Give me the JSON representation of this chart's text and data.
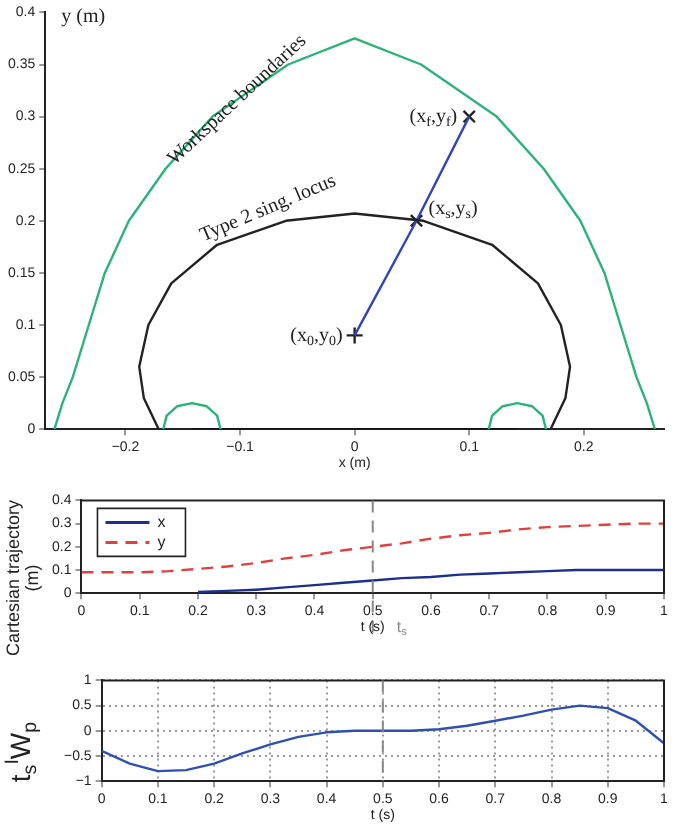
{
  "chart_data": [
    {
      "type": "line",
      "xlabel": "x (m)",
      "ylabel": "y (m)",
      "xlim": [
        -0.27,
        0.27
      ],
      "ylim": [
        0,
        0.4
      ],
      "xticks": [
        -0.2,
        -0.1,
        0,
        0.1,
        0.2
      ],
      "yticks": [
        0,
        0.05,
        0.1,
        0.15,
        0.2,
        0.25,
        0.3,
        0.35,
        0.4
      ],
      "marker": "none",
      "series": [
        {
          "color": "#2db37a",
          "x": [
            -0.262,
            -0.255,
            -0.246,
            -0.232,
            -0.218,
            -0.197,
            -0.165,
            -0.124,
            -0.058,
            0,
            0.058,
            0.124,
            0.165,
            0.197,
            0.218,
            0.232,
            0.246,
            0.255,
            0.262
          ],
          "values": [
            0,
            0.025,
            0.05,
            0.1,
            0.15,
            0.2,
            0.25,
            0.3,
            0.35,
            0.375,
            0.35,
            0.3,
            0.25,
            0.2,
            0.15,
            0.1,
            0.05,
            0.025,
            0
          ]
        },
        {
          "color": "#2db37a",
          "x": [
            -0.167,
            -0.164,
            -0.155,
            -0.142,
            -0.129,
            -0.12,
            -0.117
          ],
          "values": [
            0,
            0.013,
            0.022,
            0.025,
            0.022,
            0.013,
            0
          ]
        },
        {
          "color": "#2db37a",
          "x": [
            0.117,
            0.12,
            0.129,
            0.142,
            0.155,
            0.164,
            0.167
          ],
          "values": [
            0,
            0.013,
            0.022,
            0.025,
            0.022,
            0.013,
            0
          ]
        },
        {
          "color": "#222222",
          "x": [
            -0.171,
            -0.184,
            -0.188,
            -0.18,
            -0.16,
            -0.12,
            -0.06,
            0,
            0.06,
            0.12,
            0.16,
            0.18,
            0.188,
            0.184,
            0.171
          ],
          "values": [
            0,
            0.03,
            0.06,
            0.1,
            0.14,
            0.177,
            0.2,
            0.207,
            0.2,
            0.177,
            0.14,
            0.1,
            0.06,
            0.03,
            0
          ]
        },
        {
          "color": "#111111",
          "x": [
            -0.142,
            0.142
          ],
          "values": [
            0,
            0
          ]
        },
        {
          "color": "#3344bb",
          "x": [
            0,
            0.054,
            0.1
          ],
          "values": [
            0.09,
            0.2,
            0.3
          ]
        },
        {
          "type": "scatter",
          "marker": "plus",
          "color": "#222222",
          "x": [
            0
          ],
          "values": [
            0.09
          ]
        },
        {
          "type": "scatter",
          "marker": "cross",
          "color": "#222222",
          "x": [
            0.054
          ],
          "values": [
            0.2
          ]
        },
        {
          "type": "scatter",
          "marker": "cross",
          "color": "#222222",
          "x": [
            0.1
          ],
          "values": [
            0.3
          ]
        }
      ],
      "annotations": [
        "Workspace boundaries",
        "Type 2 sing. locus",
        {
          "text": "(x$_{0}$,y$_{0}$)",
          "x": 0,
          "y": 0.09
        },
        {
          "text": "(x$_{s}$,y$_{s}$)",
          "x": 0.054,
          "y": 0.2
        },
        {
          "text": "(x$_{f}$,y$_{f}$)",
          "x": 0.1,
          "y": 0.3
        }
      ]
    },
    {
      "type": "line",
      "xlabel": "t (s)",
      "ylabel": "Cartesian trajectory (m)",
      "xlim": [
        0,
        1
      ],
      "ylim": [
        0,
        0.4
      ],
      "xticks": [
        0,
        0.1,
        0.2,
        0.3,
        0.4,
        0.5,
        0.6,
        0.7,
        0.8,
        0.9,
        1
      ],
      "yticks": [
        0,
        0.1,
        0.2,
        0.3,
        0.4
      ],
      "legend": "top left",
      "marker": "none",
      "x": [
        0,
        0.05,
        0.1,
        0.15,
        0.2,
        0.25,
        0.3,
        0.35,
        0.4,
        0.45,
        0.5,
        0.55,
        0.6,
        0.65,
        0.7,
        0.75,
        0.8,
        0.85,
        0.9,
        0.95,
        1
      ],
      "series": [
        {
          "name": "x",
          "color": "#1f2f8f",
          "line_style": "solid",
          "values": [
            null,
            null,
            null,
            null,
            0.005,
            0.01,
            0.015,
            0.025,
            0.035,
            0.045,
            0.055,
            0.065,
            0.07,
            0.08,
            0.085,
            0.09,
            0.095,
            0.1,
            0.1,
            0.1,
            0.1
          ]
        },
        {
          "name": "y",
          "color": "#e04040",
          "line_style": "dashed",
          "values": [
            0.09,
            0.09,
            0.09,
            0.095,
            0.105,
            0.115,
            0.13,
            0.15,
            0.165,
            0.185,
            0.2,
            0.215,
            0.235,
            0.25,
            0.26,
            0.275,
            0.285,
            0.29,
            0.295,
            0.3,
            0.3
          ]
        }
      ],
      "ref_lines": [
        {
          "axis": "x",
          "value": 0.5,
          "label": "t$_{s}$",
          "color": "#888888",
          "line_style": "dashed"
        }
      ]
    },
    {
      "type": "line",
      "xlabel": "t (s)",
      "ylabel": "t$_{s}$$^{I}$W$_{p}$",
      "xlim": [
        0,
        1
      ],
      "ylim": [
        -1,
        1
      ],
      "xticks": [
        0,
        0.1,
        0.2,
        0.3,
        0.4,
        0.5,
        0.6,
        0.7,
        0.8,
        0.9,
        1
      ],
      "yticks": [
        -1,
        -0.5,
        0,
        0.5,
        1
      ],
      "grid": true,
      "marker": "none",
      "x": [
        0,
        0.05,
        0.1,
        0.15,
        0.2,
        0.25,
        0.3,
        0.35,
        0.4,
        0.45,
        0.5,
        0.55,
        0.6,
        0.65,
        0.7,
        0.75,
        0.8,
        0.85,
        0.9,
        0.95,
        1
      ],
      "series": [
        {
          "color": "#3050b0",
          "values": [
            -0.4,
            -0.65,
            -0.8,
            -0.78,
            -0.65,
            -0.45,
            -0.27,
            -0.12,
            -0.03,
            0,
            0,
            0,
            0.03,
            0.1,
            0.2,
            0.3,
            0.42,
            0.5,
            0.45,
            0.2,
            -0.25
          ]
        }
      ],
      "ref_lines": [
        {
          "axis": "x",
          "value": 0.5,
          "color": "#888888",
          "line_style": "dashed"
        }
      ]
    }
  ]
}
